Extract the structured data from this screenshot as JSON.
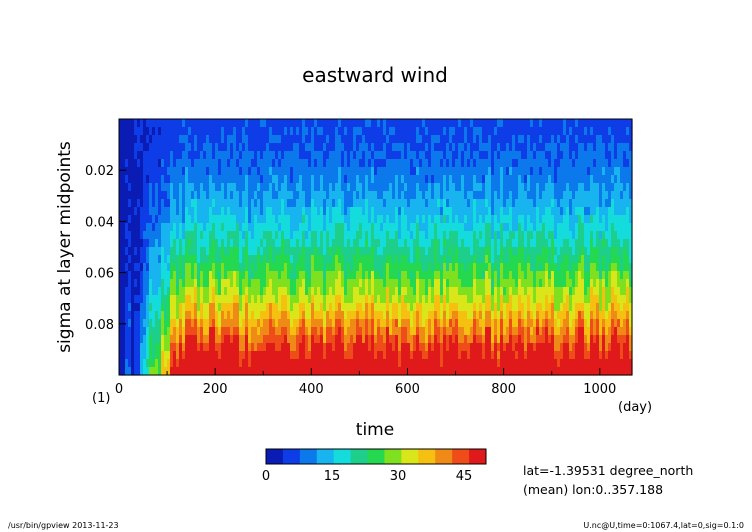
{
  "chart_data": {
    "type": "heatmap",
    "title": "eastward wind",
    "xlabel": "time",
    "ylabel": "sigma at layer midpoints",
    "x_unit": "(day)",
    "y_unit": "(1)",
    "xlim": [
      0,
      1067
    ],
    "ylim": [
      0.0,
      0.1
    ],
    "y_inverted": true,
    "x_ticks": [
      "0",
      "200",
      "400",
      "600",
      "800",
      "1000"
    ],
    "y_ticks": [
      "0.02",
      "0.04",
      "0.06",
      "0.08"
    ],
    "colorbar": {
      "min": 0,
      "max": 50,
      "step": 5,
      "labels": [
        "0",
        "15",
        "30",
        "45"
      ],
      "colors": [
        "#0a1cb4",
        "#0e3ce6",
        "#0b78ec",
        "#18b4f0",
        "#14dcdc",
        "#1ecf8c",
        "#24d850",
        "#7fe020",
        "#d8e61a",
        "#f5c010",
        "#f08a16",
        "#ee4c18",
        "#e01a1a"
      ]
    },
    "annotation_lines": [
      "lat=-1.39531 degree_north",
      "(mean) lon:0..357.188"
    ]
  },
  "footer": {
    "left": "/usr/bin/gpview  2013-11-23",
    "right": "U.nc@U,time=0:1067.4,lat=0,sig=0.1:0"
  }
}
